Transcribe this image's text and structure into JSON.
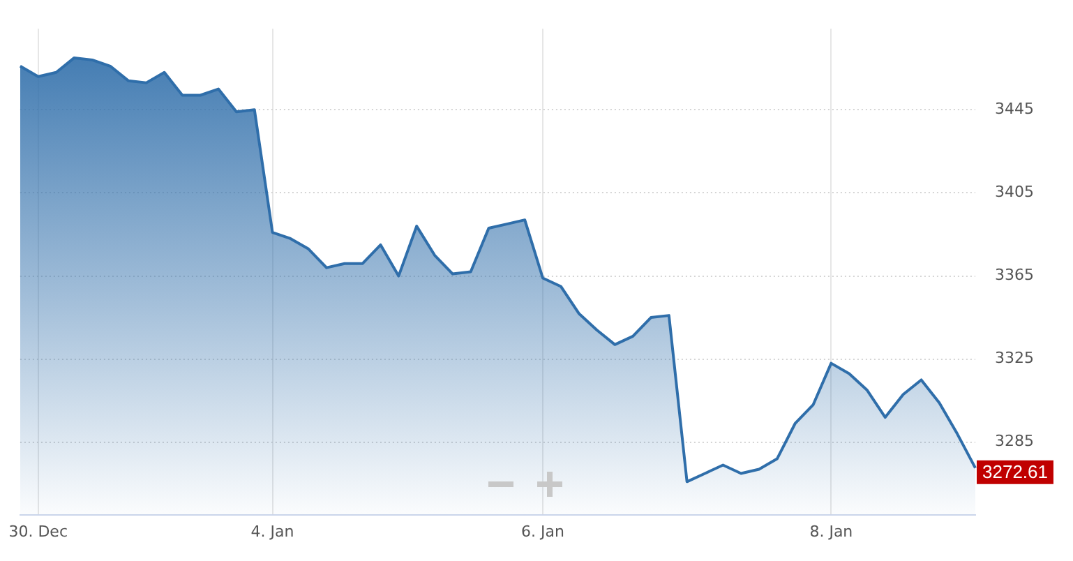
{
  "chart_data": {
    "type": "area",
    "categories": [
      null,
      "30. Dec",
      null,
      null,
      null,
      null,
      null,
      null,
      null,
      null,
      null,
      null,
      null,
      null,
      "4. Jan",
      null,
      null,
      null,
      null,
      null,
      null,
      null,
      null,
      null,
      null,
      null,
      null,
      null,
      null,
      "6. Jan",
      null,
      null,
      null,
      null,
      null,
      null,
      null,
      null,
      null,
      null,
      null,
      null,
      null,
      null,
      null,
      "8. Jan",
      null,
      null,
      null,
      null,
      null,
      null,
      null,
      null
    ],
    "values": [
      3466,
      3461,
      3463,
      3470,
      3469,
      3466,
      3459,
      3458,
      3463,
      3452,
      3452,
      3455,
      3444,
      3445,
      3386,
      3383,
      3378,
      3369,
      3371,
      3371,
      3380,
      3365,
      3389,
      3375,
      3366,
      3367,
      3388,
      3390,
      3392,
      3364,
      3360,
      3347,
      3339,
      3332,
      3336,
      3345,
      3346,
      3266,
      3270,
      3274,
      3270,
      3272,
      3277,
      3294,
      3303,
      3323,
      3318,
      3310,
      3297,
      3308,
      3315,
      3304,
      3289,
      3272.61
    ],
    "value_labels": [
      null,
      null,
      null,
      null,
      null,
      null,
      null,
      null,
      null,
      null,
      null,
      null,
      null,
      null,
      null,
      null,
      null,
      null,
      null,
      null,
      null,
      null,
      null,
      null,
      null,
      null,
      null,
      null,
      null,
      null,
      null,
      null,
      null,
      null,
      null,
      null,
      null,
      null,
      null,
      null,
      null,
      null,
      null,
      null,
      null,
      null,
      null,
      null,
      null,
      null,
      null,
      null,
      null,
      "3272.61"
    ],
    "color": "#2f6eaa",
    "ylim": [
      3250,
      3484
    ],
    "yticks": [
      3285,
      3325,
      3365,
      3405,
      3445
    ],
    "grid": true,
    "marker": "none"
  }
}
